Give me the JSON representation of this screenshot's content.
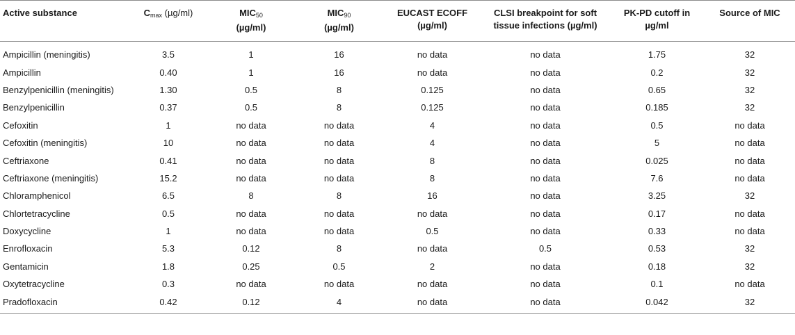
{
  "headers": {
    "substance": "Active substance",
    "cmax_main": "C",
    "cmax_sub": "max",
    "cmax_unit": " (µg/ml)",
    "mic50_main": "MIC",
    "mic50_sub": "50",
    "mic50_unit": "(µg/ml)",
    "mic90_main": "MIC",
    "mic90_sub": "90",
    "mic90_unit": "(µg/ml)",
    "eucast_line1": "EUCAST ECOFF",
    "eucast_line2": "(µg/ml)",
    "clsi_line1": "CLSI breakpoint for soft",
    "clsi_line2": "tissue infections (µg/ml)",
    "pkpd_line1": "PK-PD cutoff in",
    "pkpd_line2": "µg/ml",
    "source": "Source of MIC"
  },
  "rows": [
    {
      "substance": "Ampicillin (meningitis)",
      "cmax": "3.5",
      "mic50": "1",
      "mic90": "16",
      "eucast": "no data",
      "clsi": "no data",
      "pkpd": "1.75",
      "source": "32"
    },
    {
      "substance": "Ampicillin",
      "cmax": "0.40",
      "mic50": "1",
      "mic90": "16",
      "eucast": "no data",
      "clsi": "no data",
      "pkpd": "0.2",
      "source": "32"
    },
    {
      "substance": "Benzylpenicillin (meningitis)",
      "cmax": "1.30",
      "mic50": "0.5",
      "mic90": "8",
      "eucast": "0.125",
      "clsi": "no data",
      "pkpd": "0.65",
      "source": "32"
    },
    {
      "substance": "Benzylpenicillin",
      "cmax": "0.37",
      "mic50": "0.5",
      "mic90": "8",
      "eucast": "0.125",
      "clsi": "no data",
      "pkpd": "0.185",
      "source": "32"
    },
    {
      "substance": "Cefoxitin",
      "cmax": "1",
      "mic50": "no data",
      "mic90": "no data",
      "eucast": "4",
      "clsi": "no data",
      "pkpd": "0.5",
      "source": "no data"
    },
    {
      "substance": "Cefoxitin (meningitis)",
      "cmax": "10",
      "mic50": "no data",
      "mic90": "no data",
      "eucast": "4",
      "clsi": "no data",
      "pkpd": "5",
      "source": "no data"
    },
    {
      "substance": "Ceftriaxone",
      "cmax": "0.41",
      "mic50": "no data",
      "mic90": "no data",
      "eucast": "8",
      "clsi": "no data",
      "pkpd": "0.025",
      "source": "no data"
    },
    {
      "substance": "Ceftriaxone (meningitis)",
      "cmax": "15.2",
      "mic50": "no data",
      "mic90": "no data",
      "eucast": "8",
      "clsi": "no data",
      "pkpd": "7.6",
      "source": "no data"
    },
    {
      "substance": "Chloramphenicol",
      "cmax": "6.5",
      "mic50": "8",
      "mic90": "8",
      "eucast": "16",
      "clsi": "no data",
      "pkpd": "3.25",
      "source": "32"
    },
    {
      "substance": "Chlortetracycline",
      "cmax": "0.5",
      "mic50": "no data",
      "mic90": "no data",
      "eucast": "no data",
      "clsi": "no data",
      "pkpd": "0.17",
      "source": "no data"
    },
    {
      "substance": "Doxycycline",
      "cmax": "1",
      "mic50": "no data",
      "mic90": "no data",
      "eucast": "0.5",
      "clsi": "no data",
      "pkpd": "0.33",
      "source": "no data"
    },
    {
      "substance": "Enrofloxacin",
      "cmax": "5.3",
      "mic50": "0.12",
      "mic90": "8",
      "eucast": "no data",
      "clsi": "0.5",
      "pkpd": "0.53",
      "source": "32"
    },
    {
      "substance": "Gentamicin",
      "cmax": "1.8",
      "mic50": "0.25",
      "mic90": "0.5",
      "eucast": "2",
      "clsi": "no data",
      "pkpd": "0.18",
      "source": "32"
    },
    {
      "substance": "Oxytetracycline",
      "cmax": "0.3",
      "mic50": "no data",
      "mic90": "no data",
      "eucast": "no data",
      "clsi": "no data",
      "pkpd": "0.1",
      "source": "no data"
    },
    {
      "substance": "Pradofloxacin",
      "cmax": "0.42",
      "mic50": "0.12",
      "mic90": "4",
      "eucast": "no data",
      "clsi": "no data",
      "pkpd": "0.042",
      "source": "32"
    }
  ]
}
